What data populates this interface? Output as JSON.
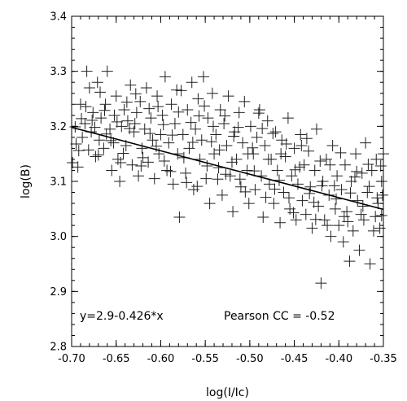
{
  "chart_data": {
    "type": "scatter",
    "xlabel": "log(I/Ic)",
    "ylabel": "log(B)",
    "xlim": [
      -0.7,
      -0.35
    ],
    "ylim": [
      2.8,
      3.4
    ],
    "x_ticks": [
      "-0.70",
      "-0.65",
      "-0.60",
      "-0.55",
      "-0.50",
      "-0.45",
      "-0.40",
      "-0.35"
    ],
    "x_tick_values": [
      -0.7,
      -0.65,
      -0.6,
      -0.55,
      -0.5,
      -0.45,
      -0.4,
      -0.35
    ],
    "y_ticks": [
      "2.8",
      "2.9",
      "3.0",
      "3.1",
      "3.2",
      "3.3",
      "3.4"
    ],
    "y_tick_values": [
      2.8,
      2.9,
      3.0,
      3.1,
      3.2,
      3.3,
      3.4
    ],
    "marker": "plus",
    "grid": false,
    "fit_line": {
      "intercept": 2.9,
      "slope": -0.426,
      "x_range": [
        -0.7,
        -0.35
      ]
    },
    "annotations": {
      "equation": "y=2.9-0.426*x",
      "pearson": "Pearson CC = -0.52"
    },
    "points": [
      [
        -0.699,
        3.134
      ],
      [
        -0.696,
        3.199
      ],
      [
        -0.693,
        3.126
      ],
      [
        -0.69,
        3.24
      ],
      [
        -0.688,
        3.18
      ],
      [
        -0.685,
        3.205
      ],
      [
        -0.683,
        3.3
      ],
      [
        -0.68,
        3.27
      ],
      [
        -0.678,
        3.19
      ],
      [
        -0.676,
        3.225
      ],
      [
        -0.673,
        3.145
      ],
      [
        -0.671,
        3.28
      ],
      [
        -0.669,
        3.175
      ],
      [
        -0.667,
        3.215
      ],
      [
        -0.664,
        3.16
      ],
      [
        -0.662,
        3.24
      ],
      [
        -0.66,
        3.3
      ],
      [
        -0.657,
        3.195
      ],
      [
        -0.655,
        3.12
      ],
      [
        -0.653,
        3.17
      ],
      [
        -0.65,
        3.255
      ],
      [
        -0.648,
        3.14
      ],
      [
        -0.646,
        3.1
      ],
      [
        -0.644,
        3.2
      ],
      [
        -0.641,
        3.23
      ],
      [
        -0.639,
        3.165
      ],
      [
        -0.637,
        3.21
      ],
      [
        -0.634,
        3.275
      ],
      [
        -0.632,
        3.13
      ],
      [
        -0.63,
        3.19
      ],
      [
        -0.627,
        3.225
      ],
      [
        -0.625,
        3.11
      ],
      [
        -0.623,
        3.245
      ],
      [
        -0.621,
        3.16
      ],
      [
        -0.618,
        3.195
      ],
      [
        -0.616,
        3.27
      ],
      [
        -0.614,
        3.135
      ],
      [
        -0.611,
        3.215
      ],
      [
        -0.609,
        3.175
      ],
      [
        -0.607,
        3.105
      ],
      [
        -0.604,
        3.255
      ],
      [
        -0.602,
        3.15
      ],
      [
        -0.6,
        3.185
      ],
      [
        -0.598,
        3.22
      ],
      [
        -0.595,
        3.29
      ],
      [
        -0.593,
        3.12
      ],
      [
        -0.591,
        3.17
      ],
      [
        -0.588,
        3.24
      ],
      [
        -0.586,
        3.095
      ],
      [
        -0.584,
        3.205
      ],
      [
        -0.581,
        3.15
      ],
      [
        -0.579,
        3.035
      ],
      [
        -0.577,
        3.265
      ],
      [
        -0.575,
        3.185
      ],
      [
        -0.572,
        3.115
      ],
      [
        -0.57,
        3.23
      ],
      [
        -0.568,
        3.16
      ],
      [
        -0.565,
        3.28
      ],
      [
        -0.563,
        3.085
      ],
      [
        -0.561,
        3.195
      ],
      [
        -0.558,
        3.25
      ],
      [
        -0.556,
        3.14
      ],
      [
        -0.554,
        3.175
      ],
      [
        -0.552,
        3.29
      ],
      [
        -0.549,
        3.105
      ],
      [
        -0.547,
        3.215
      ],
      [
        -0.545,
        3.06
      ],
      [
        -0.542,
        3.26
      ],
      [
        -0.54,
        3.15
      ],
      [
        -0.538,
        3.185
      ],
      [
        -0.535,
        3.125
      ],
      [
        -0.533,
        3.23
      ],
      [
        -0.531,
        3.075
      ],
      [
        -0.529,
        3.205
      ],
      [
        -0.526,
        3.165
      ],
      [
        -0.524,
        3.255
      ],
      [
        -0.522,
        3.11
      ],
      [
        -0.519,
        3.045
      ],
      [
        -0.517,
        3.19
      ],
      [
        -0.515,
        3.14
      ],
      [
        -0.512,
        3.225
      ],
      [
        -0.51,
        3.09
      ],
      [
        -0.508,
        3.17
      ],
      [
        -0.506,
        3.245
      ],
      [
        -0.503,
        3.12
      ],
      [
        -0.501,
        3.06
      ],
      [
        -0.499,
        3.2
      ],
      [
        -0.496,
        3.15
      ],
      [
        -0.494,
        3.085
      ],
      [
        -0.492,
        3.18
      ],
      [
        -0.489,
        3.23
      ],
      [
        -0.487,
        3.11
      ],
      [
        -0.485,
        3.035
      ],
      [
        -0.483,
        3.165
      ],
      [
        -0.48,
        3.21
      ],
      [
        -0.478,
        3.095
      ],
      [
        -0.476,
        3.14
      ],
      [
        -0.473,
        3.06
      ],
      [
        -0.471,
        3.19
      ],
      [
        -0.469,
        3.12
      ],
      [
        -0.466,
        3.025
      ],
      [
        -0.464,
        3.175
      ],
      [
        -0.462,
        3.08
      ],
      [
        -0.46,
        3.145
      ],
      [
        -0.457,
        3.215
      ],
      [
        -0.455,
        3.05
      ],
      [
        -0.453,
        3.11
      ],
      [
        -0.45,
        3.16
      ],
      [
        -0.448,
        3.03
      ],
      [
        -0.446,
        3.095
      ],
      [
        -0.443,
        3.185
      ],
      [
        -0.441,
        3.065
      ],
      [
        -0.439,
        3.13
      ],
      [
        -0.437,
        3.04
      ],
      [
        -0.434,
        3.155
      ],
      [
        -0.432,
        3.09
      ],
      [
        -0.43,
        3.015
      ],
      [
        -0.427,
        3.12
      ],
      [
        -0.425,
        3.195
      ],
      [
        -0.423,
        3.055
      ],
      [
        -0.42,
        2.915
      ],
      [
        -0.418,
        3.1
      ],
      [
        -0.416,
        3.03
      ],
      [
        -0.414,
        3.14
      ],
      [
        -0.411,
        3.075
      ],
      [
        -0.409,
        3.0
      ],
      [
        -0.407,
        3.165
      ],
      [
        -0.404,
        3.05
      ],
      [
        -0.402,
        3.11
      ],
      [
        -0.4,
        3.02
      ],
      [
        -0.397,
        3.085
      ],
      [
        -0.395,
        2.99
      ],
      [
        -0.393,
        3.13
      ],
      [
        -0.391,
        3.045
      ],
      [
        -0.388,
        2.955
      ],
      [
        -0.386,
        3.1
      ],
      [
        -0.384,
        3.01
      ],
      [
        -0.381,
        3.15
      ],
      [
        -0.379,
        3.065
      ],
      [
        -0.377,
        2.975
      ],
      [
        -0.374,
        3.115
      ],
      [
        -0.372,
        3.03
      ],
      [
        -0.37,
        3.17
      ],
      [
        -0.368,
        3.08
      ],
      [
        -0.365,
        2.95
      ],
      [
        -0.363,
        3.12
      ],
      [
        -0.361,
        3.01
      ],
      [
        -0.358,
        3.14
      ],
      [
        -0.356,
        3.06
      ],
      [
        -0.354,
        3.015
      ],
      [
        -0.352,
        3.1
      ],
      [
        -0.351,
        3.075
      ],
      [
        -0.695,
        3.168
      ],
      [
        -0.689,
        3.214
      ],
      [
        -0.681,
        3.157
      ],
      [
        -0.674,
        3.198
      ],
      [
        -0.668,
        3.262
      ],
      [
        -0.661,
        3.186
      ],
      [
        -0.652,
        3.22
      ],
      [
        -0.645,
        3.134
      ],
      [
        -0.638,
        3.244
      ],
      [
        -0.629,
        3.205
      ],
      [
        -0.622,
        3.128
      ],
      [
        -0.613,
        3.232
      ],
      [
        -0.605,
        3.164
      ],
      [
        -0.597,
        3.203
      ],
      [
        -0.589,
        3.118
      ],
      [
        -0.582,
        3.266
      ],
      [
        -0.574,
        3.143
      ],
      [
        -0.566,
        3.207
      ],
      [
        -0.559,
        3.091
      ],
      [
        -0.551,
        3.237
      ],
      [
        -0.543,
        3.172
      ],
      [
        -0.536,
        3.104
      ],
      [
        -0.528,
        3.219
      ],
      [
        -0.52,
        3.135
      ],
      [
        -0.513,
        3.198
      ],
      [
        -0.505,
        3.081
      ],
      [
        -0.497,
        3.161
      ],
      [
        -0.49,
        3.224
      ],
      [
        -0.482,
        3.071
      ],
      [
        -0.474,
        3.187
      ],
      [
        -0.467,
        3.102
      ],
      [
        -0.459,
        3.168
      ],
      [
        -0.451,
        3.043
      ],
      [
        -0.444,
        3.126
      ],
      [
        -0.436,
        3.178
      ],
      [
        -0.428,
        3.062
      ],
      [
        -0.421,
        3.137
      ],
      [
        -0.413,
        3.02
      ],
      [
        -0.405,
        3.092
      ],
      [
        -0.398,
        3.152
      ],
      [
        -0.39,
        3.027
      ],
      [
        -0.382,
        3.108
      ],
      [
        -0.375,
        3.04
      ],
      [
        -0.367,
        3.131
      ],
      [
        -0.359,
        3.036
      ],
      [
        -0.353,
        3.128
      ],
      [
        -0.692,
        3.156
      ],
      [
        -0.684,
        3.236
      ],
      [
        -0.677,
        3.211
      ],
      [
        -0.67,
        3.148
      ],
      [
        -0.663,
        3.229
      ],
      [
        -0.656,
        3.174
      ],
      [
        -0.649,
        3.208
      ],
      [
        -0.642,
        3.151
      ],
      [
        -0.635,
        3.196
      ],
      [
        -0.628,
        3.259
      ],
      [
        -0.62,
        3.143
      ],
      [
        -0.612,
        3.187
      ],
      [
        -0.603,
        3.236
      ],
      [
        -0.596,
        3.137
      ],
      [
        -0.587,
        3.184
      ],
      [
        -0.58,
        3.226
      ],
      [
        -0.571,
        3.098
      ],
      [
        -0.564,
        3.171
      ],
      [
        -0.557,
        3.219
      ],
      [
        -0.548,
        3.128
      ],
      [
        -0.541,
        3.2
      ],
      [
        -0.534,
        3.157
      ],
      [
        -0.527,
        3.113
      ],
      [
        -0.518,
        3.182
      ],
      [
        -0.511,
        3.104
      ],
      [
        -0.502,
        3.15
      ],
      [
        -0.495,
        3.119
      ],
      [
        -0.486,
        3.196
      ],
      [
        -0.479,
        3.14
      ],
      [
        -0.472,
        3.086
      ],
      [
        -0.465,
        3.15
      ],
      [
        -0.456,
        3.07
      ],
      [
        -0.449,
        3.121
      ],
      [
        -0.442,
        3.165
      ],
      [
        -0.433,
        3.078
      ],
      [
        -0.426,
        3.031
      ],
      [
        -0.419,
        3.092
      ],
      [
        -0.41,
        3.13
      ],
      [
        -0.403,
        3.068
      ],
      [
        -0.394,
        3.036
      ],
      [
        -0.387,
        3.079
      ],
      [
        -0.38,
        3.118
      ],
      [
        -0.373,
        3.055
      ],
      [
        -0.366,
        3.091
      ],
      [
        -0.357,
        3.07
      ],
      [
        -0.352,
        3.038
      ],
      [
        -0.35,
        3.15
      ]
    ]
  }
}
